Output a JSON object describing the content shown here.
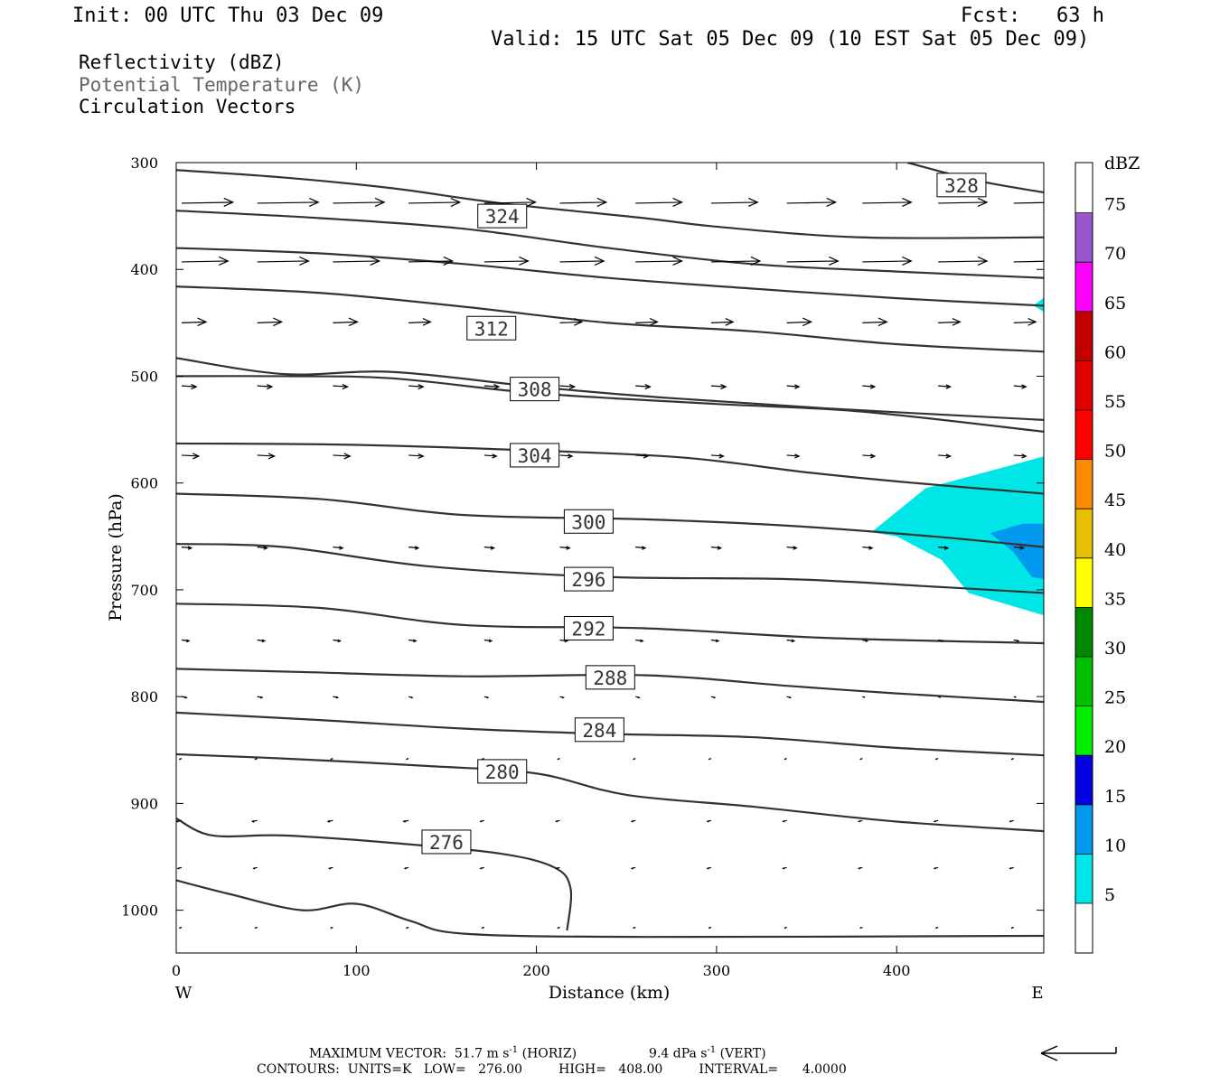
{
  "header": {
    "init": "Init: 00 UTC Thu 03 Dec 09",
    "fcst": "Fcst:   63 h",
    "valid": "Valid: 15 UTC Sat 05 Dec 09 (10 EST Sat 05 Dec 09)"
  },
  "legend": {
    "line1": "Reflectivity (dBZ)",
    "line2": "Potential Temperature (K)",
    "line3": "Circulation Vectors"
  },
  "colors": {
    "contour": "#333333",
    "legend_gray": "#666666",
    "refl_5": "#00e5e5",
    "refl_10": "#0099ee",
    "refl_15": "#0000e0"
  },
  "chart_data": {
    "type": "heatmap",
    "title": "",
    "xlabel": "Distance (km)",
    "ylabel": "Pressure (hPa)",
    "xlim": [
      0,
      482
    ],
    "ylim": [
      1040,
      300
    ],
    "x_ticks": [
      0,
      100,
      200,
      300,
      400
    ],
    "y_ticks": [
      300,
      400,
      500,
      600,
      700,
      800,
      900,
      1000
    ],
    "x_end_labels": {
      "left": "W",
      "right": "E"
    },
    "colorbar": {
      "unit": "dBZ",
      "levels": [
        5,
        10,
        15,
        20,
        25,
        30,
        35,
        40,
        45,
        50,
        55,
        60,
        65,
        70,
        75
      ],
      "colors": [
        "#00e5e5",
        "#0099ee",
        "#0000e0",
        "#00ee00",
        "#00c000",
        "#008800",
        "#ffff00",
        "#e5c000",
        "#ff8c00",
        "#ff0000",
        "#e00000",
        "#c40000",
        "#ff00ff",
        "#9955cc",
        "#ffffff"
      ]
    },
    "theta_contours": [
      {
        "label": "328",
        "label_x": 436,
        "label_y": 321,
        "points": [
          [
            406,
            300
          ],
          [
            445,
            317
          ],
          [
            482,
            328
          ]
        ]
      },
      {
        "label": "324",
        "label_x": 181,
        "label_y": 350,
        "points": [
          [
            0,
            307
          ],
          [
            60,
            314
          ],
          [
            120,
            324
          ],
          [
            180,
            338
          ],
          [
            260,
            352
          ],
          [
            300,
            360
          ],
          [
            380,
            370
          ],
          [
            482,
            370
          ]
        ]
      },
      {
        "label": "",
        "points": [
          [
            0,
            345
          ],
          [
            80,
            352
          ],
          [
            160,
            362
          ],
          [
            240,
            380
          ],
          [
            320,
            395
          ],
          [
            400,
            402
          ],
          [
            482,
            408
          ]
        ]
      },
      {
        "label": "",
        "points": [
          [
            0,
            380
          ],
          [
            80,
            385
          ],
          [
            160,
            395
          ],
          [
            240,
            408
          ],
          [
            320,
            418
          ],
          [
            400,
            427
          ],
          [
            482,
            434
          ]
        ]
      },
      {
        "label": "312",
        "label_x": 175,
        "label_y": 455,
        "points": [
          [
            0,
            416
          ],
          [
            80,
            422
          ],
          [
            160,
            435
          ],
          [
            240,
            450
          ],
          [
            320,
            458
          ],
          [
            400,
            470
          ],
          [
            482,
            477
          ]
        ]
      },
      {
        "label": "",
        "points": [
          [
            0,
            483
          ],
          [
            60,
            498
          ],
          [
            120,
            496
          ],
          [
            200,
            510
          ],
          [
            270,
            520
          ],
          [
            360,
            530
          ],
          [
            482,
            541
          ]
        ]
      },
      {
        "label": "308",
        "label_x": 199,
        "label_y": 512,
        "points": [
          [
            0,
            500
          ],
          [
            60,
            500
          ],
          [
            120,
            502
          ],
          [
            200,
            516
          ],
          [
            300,
            526
          ],
          [
            380,
            533
          ],
          [
            482,
            552
          ]
        ]
      },
      {
        "label": "304",
        "label_x": 199,
        "label_y": 574,
        "points": [
          [
            0,
            563
          ],
          [
            90,
            564
          ],
          [
            190,
            569
          ],
          [
            280,
            576
          ],
          [
            350,
            590
          ],
          [
            410,
            600
          ],
          [
            482,
            610
          ]
        ]
      },
      {
        "label": "300",
        "label_x": 229,
        "label_y": 636,
        "points": [
          [
            0,
            610
          ],
          [
            80,
            615
          ],
          [
            160,
            630
          ],
          [
            260,
            634
          ],
          [
            340,
            640
          ],
          [
            420,
            650
          ],
          [
            482,
            660
          ]
        ]
      },
      {
        "label": "296",
        "label_x": 229,
        "label_y": 690,
        "points": [
          [
            0,
            657
          ],
          [
            60,
            660
          ],
          [
            140,
            678
          ],
          [
            240,
            688
          ],
          [
            340,
            690
          ],
          [
            420,
            697
          ],
          [
            482,
            703
          ]
        ]
      },
      {
        "label": "292",
        "label_x": 229,
        "label_y": 736,
        "points": [
          [
            0,
            713
          ],
          [
            80,
            717
          ],
          [
            160,
            733
          ],
          [
            260,
            736
          ],
          [
            360,
            745
          ],
          [
            482,
            750
          ]
        ]
      },
      {
        "label": "288",
        "label_x": 241,
        "label_y": 782,
        "points": [
          [
            0,
            774
          ],
          [
            70,
            777
          ],
          [
            160,
            781
          ],
          [
            260,
            780
          ],
          [
            340,
            790
          ],
          [
            400,
            797
          ],
          [
            482,
            805
          ]
        ]
      },
      {
        "label": "284",
        "label_x": 235,
        "label_y": 831,
        "points": [
          [
            0,
            815
          ],
          [
            80,
            822
          ],
          [
            160,
            830
          ],
          [
            240,
            835
          ],
          [
            320,
            838
          ],
          [
            400,
            848
          ],
          [
            482,
            855
          ]
        ]
      },
      {
        "label": "280",
        "label_x": 181,
        "label_y": 870,
        "points": [
          [
            0,
            854
          ],
          [
            60,
            858
          ],
          [
            140,
            865
          ],
          [
            200,
            872
          ],
          [
            250,
            892
          ],
          [
            320,
            903
          ],
          [
            400,
            917
          ],
          [
            482,
            926
          ]
        ]
      },
      {
        "label": "276",
        "label_x": 150,
        "label_y": 936,
        "points": [
          [
            0,
            914
          ],
          [
            20,
            930
          ],
          [
            60,
            930
          ],
          [
            120,
            937
          ],
          [
            180,
            947
          ],
          [
            210,
            960
          ],
          [
            219,
            980
          ],
          [
            217,
            1019
          ]
        ]
      },
      {
        "label": "",
        "points": [
          [
            0,
            972
          ],
          [
            30,
            985
          ],
          [
            70,
            1000
          ],
          [
            100,
            994
          ],
          [
            130,
            1010
          ],
          [
            160,
            1022
          ],
          [
            260,
            1025
          ],
          [
            482,
            1024
          ]
        ]
      }
    ],
    "reflectivity_regions": [
      {
        "level": 5,
        "points": [
          [
            386,
            646
          ],
          [
            416,
            605
          ],
          [
            482,
            575
          ],
          [
            482,
            724
          ],
          [
            440,
            703
          ],
          [
            425,
            672
          ],
          [
            400,
            650
          ]
        ]
      },
      {
        "level": 5,
        "points": [
          [
            476,
            434
          ],
          [
            482,
            426
          ],
          [
            482,
            440
          ]
        ]
      },
      {
        "level": 10,
        "points": [
          [
            452,
            647
          ],
          [
            470,
            638
          ],
          [
            482,
            638
          ],
          [
            482,
            690
          ],
          [
            475,
            688
          ],
          [
            465,
            665
          ]
        ]
      }
    ],
    "vectors": {
      "row_pressures": [
        338,
        393,
        450,
        509,
        574,
        660,
        747,
        800,
        858,
        916,
        960,
        1016
      ],
      "x_positions": [
        0,
        42,
        84,
        126,
        168,
        210,
        252,
        294,
        336,
        378,
        420,
        462
      ],
      "u": [
        [
          42,
          50,
          42,
          42,
          42,
          38,
          38,
          38,
          40,
          40,
          40,
          36
        ],
        [
          38,
          42,
          38,
          36,
          36,
          36,
          38,
          40,
          42,
          40,
          40,
          34
        ],
        [
          20,
          20,
          20,
          18,
          18,
          18,
          18,
          18,
          20,
          20,
          18,
          18
        ],
        [
          12,
          12,
          12,
          12,
          12,
          12,
          12,
          12,
          10,
          10,
          10,
          10
        ],
        [
          14,
          14,
          14,
          12,
          10,
          10,
          10,
          10,
          10,
          10,
          10,
          10
        ],
        [
          8,
          8,
          8,
          8,
          8,
          8,
          8,
          8,
          8,
          8,
          8,
          8
        ],
        [
          6,
          6,
          6,
          6,
          6,
          6,
          6,
          6,
          6,
          4,
          4,
          4
        ],
        [
          4,
          4,
          4,
          3,
          3,
          3,
          3,
          3,
          3,
          2,
          2,
          2
        ],
        [
          -2,
          -2,
          -2,
          -2,
          -2,
          -2,
          -2,
          -2,
          -2,
          -2,
          -2,
          -2
        ],
        [
          -4,
          -4,
          -4,
          -4,
          -3,
          -3,
          -3,
          -3,
          -3,
          -3,
          -3,
          -3
        ],
        [
          -3,
          -3,
          -3,
          -3,
          -3,
          -3,
          -3,
          -3,
          -3,
          -3,
          -3,
          -3
        ],
        [
          -2,
          -2,
          -2,
          -2,
          -2,
          -2,
          -2,
          -2,
          -2,
          -2,
          -2,
          -2
        ]
      ]
    },
    "max_vector_text": "MAXIMUM VECTOR:  51.7 m s",
    "max_vector_exp": "-1",
    "max_vector_horiz": " (HORIZ)",
    "max_vector_vert_val": "9.4 dPa s",
    "max_vector_vert": " (VERT)",
    "contours_footer": "CONTOURS:  UNITS=K   LOW=   276.00         HIGH=   408.00         INTERVAL=      4.0000"
  }
}
